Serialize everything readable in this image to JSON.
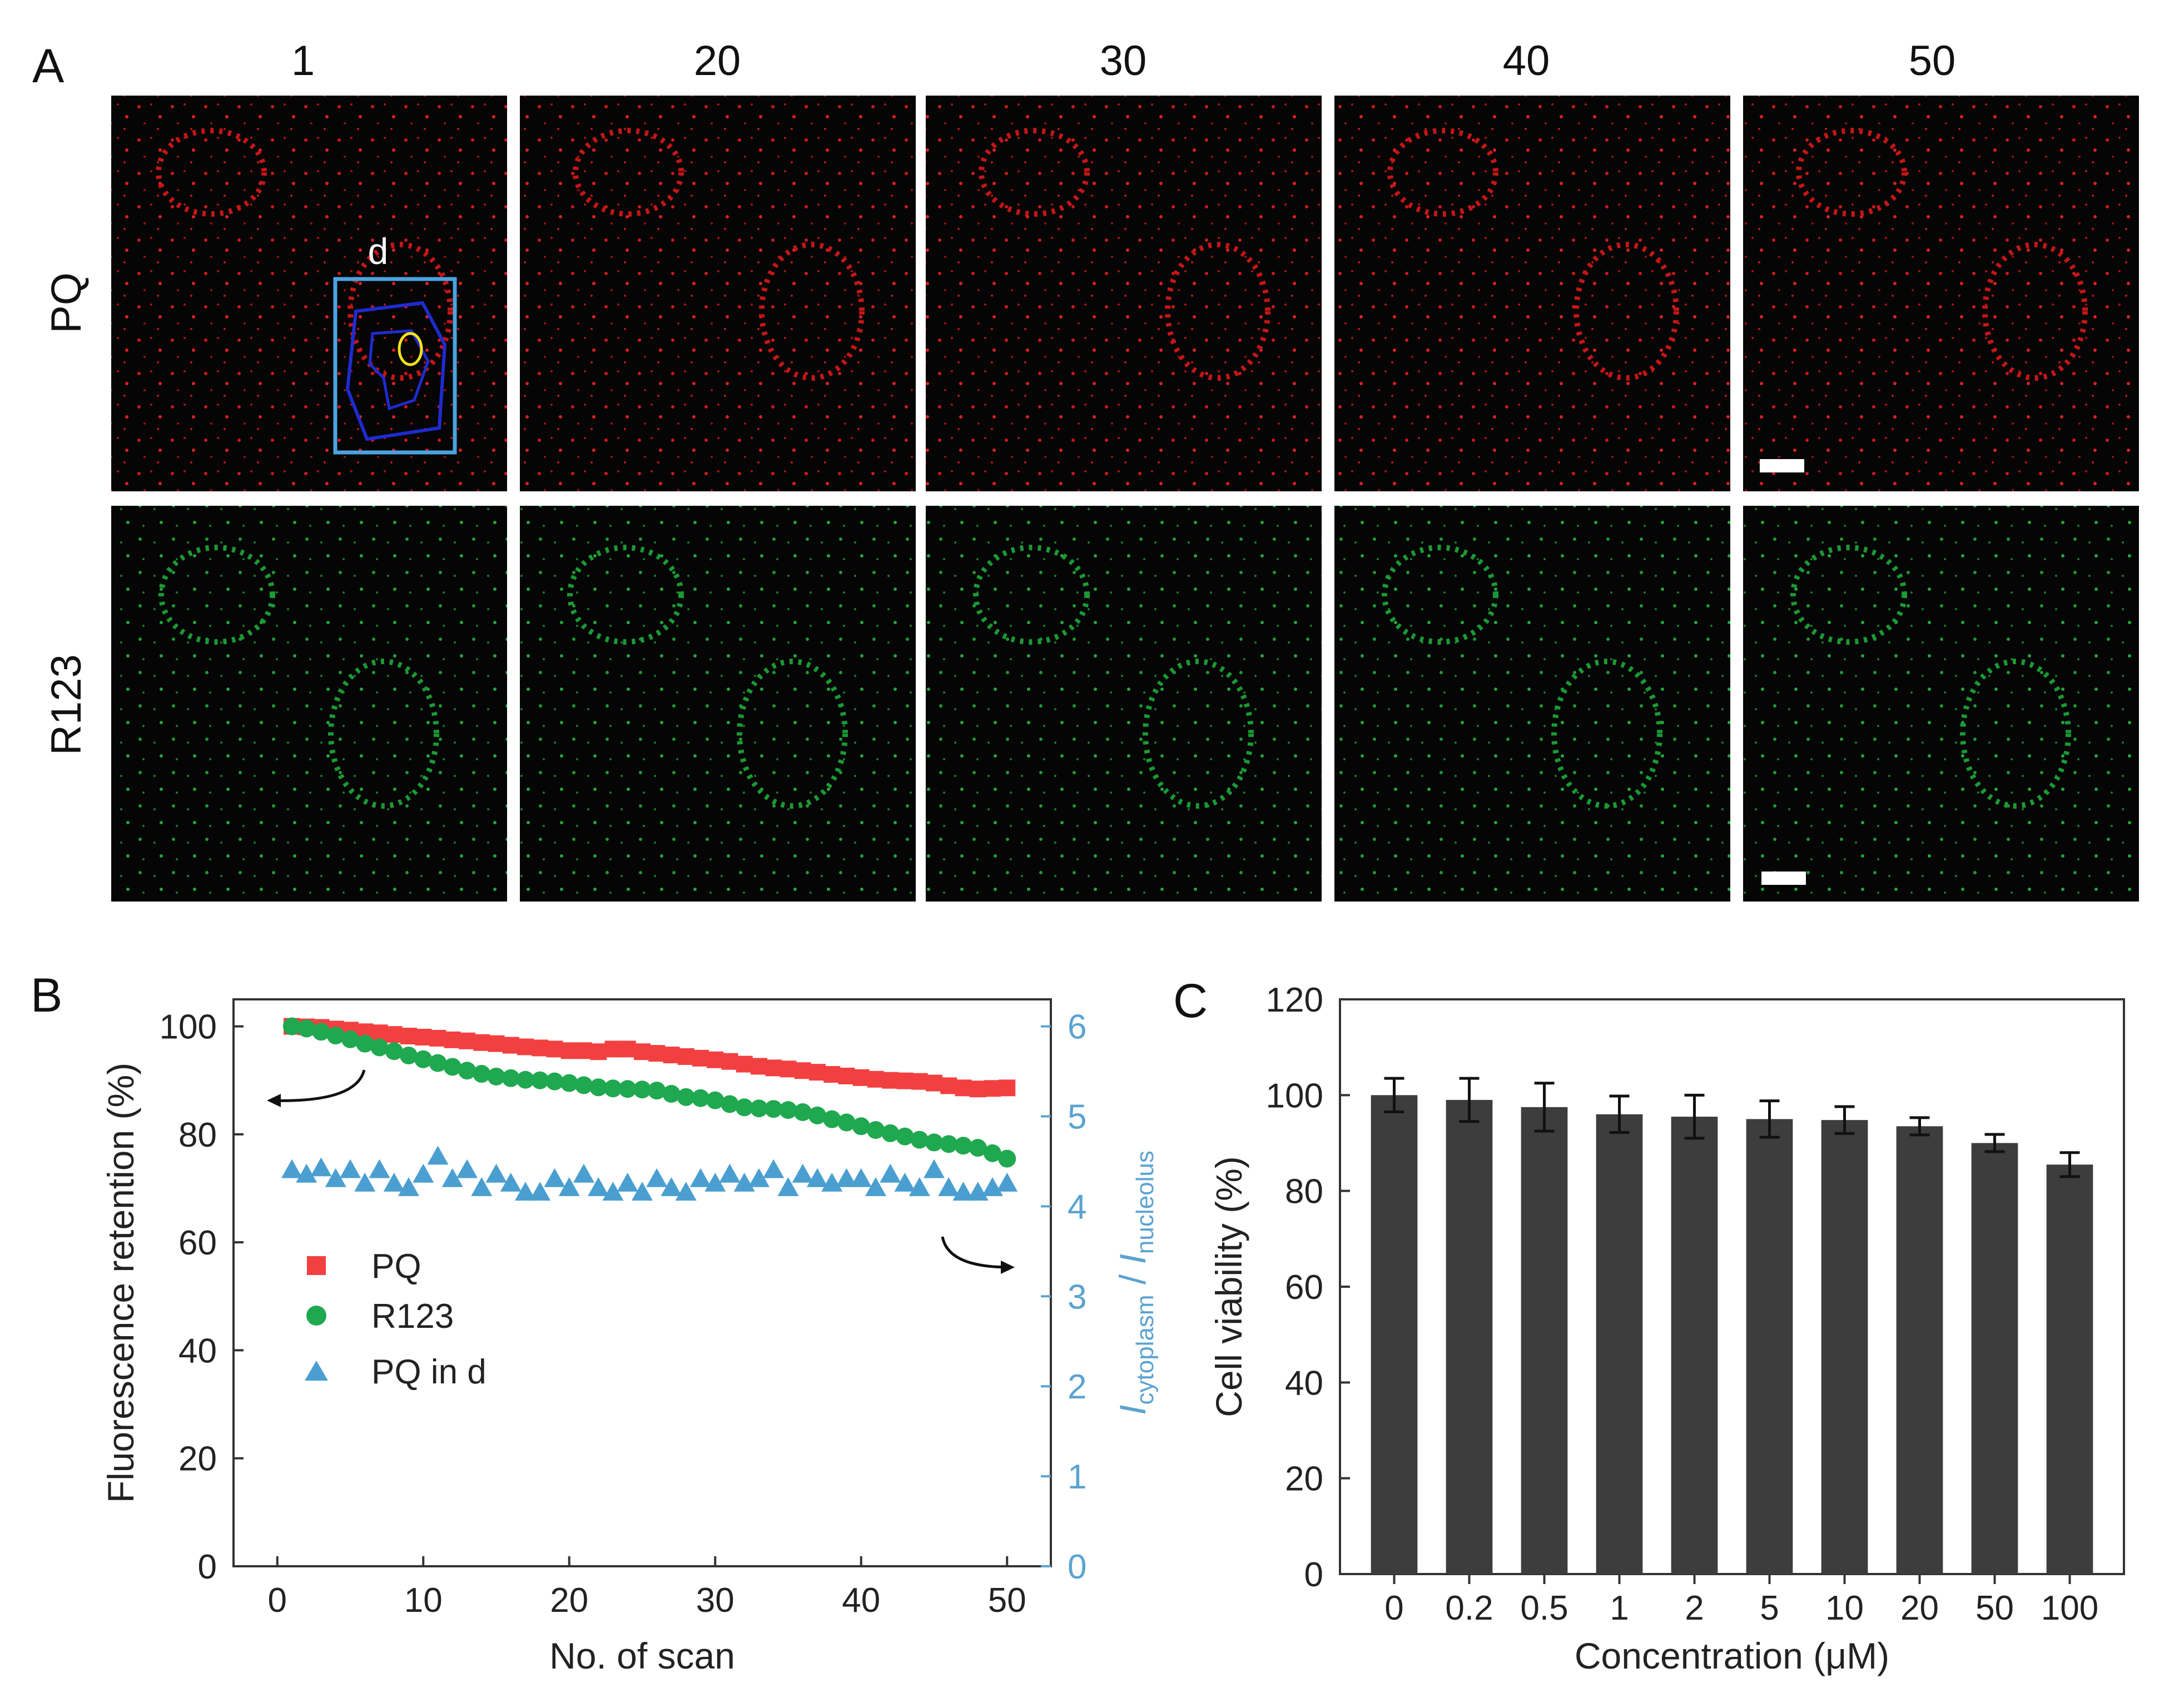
{
  "panel_a": {
    "letter": "A",
    "columns": [
      "1",
      "20",
      "30",
      "40",
      "50"
    ],
    "rows": [
      "PQ",
      "R123"
    ],
    "roi_label": "d",
    "colors": {
      "pq": "#e02020",
      "r123": "#22a83a",
      "roi_outer": "#4aa3df",
      "roi_inner": "#1f2bd0",
      "roi_nucleolus": "#f2e11a"
    }
  },
  "chart_data": [
    {
      "type": "scatter",
      "panel_letter": "B",
      "xlabel": "No. of scan",
      "ylabel": "Fluorescence retention (%)",
      "ylabel_right_parts": {
        "i1": "I",
        "sub1": "cytoplasm",
        "sep": " / ",
        "i2": "I",
        "sub2": "nucleolus"
      },
      "xlim": [
        -3,
        53
      ],
      "ylim": [
        0,
        105
      ],
      "y2lim": [
        0,
        6.3
      ],
      "xticks": [
        0,
        10,
        20,
        30,
        40,
        50
      ],
      "yticks": [
        0,
        20,
        40,
        60,
        80,
        100
      ],
      "y2ticks": [
        0,
        1,
        2,
        3,
        4,
        5,
        6
      ],
      "series": [
        {
          "name": "PQ",
          "marker": "square",
          "color": "#f24040",
          "axis": "left",
          "x": [
            1,
            2,
            3,
            4,
            5,
            6,
            7,
            8,
            9,
            10,
            11,
            12,
            13,
            14,
            15,
            16,
            17,
            18,
            19,
            20,
            21,
            22,
            23,
            24,
            25,
            26,
            27,
            28,
            29,
            30,
            31,
            32,
            33,
            34,
            35,
            36,
            37,
            38,
            39,
            40,
            41,
            42,
            43,
            44,
            45,
            46,
            47,
            48,
            49,
            50
          ],
          "y": [
            100,
            99.9,
            99.8,
            99.5,
            99.3,
            99,
            98.8,
            98.5,
            98.2,
            98,
            97.8,
            97.5,
            97.3,
            97,
            96.8,
            96.5,
            96.2,
            96,
            95.8,
            95.5,
            95.5,
            95.3,
            95.8,
            95.8,
            95.3,
            95,
            94.7,
            94.4,
            94.1,
            93.8,
            93.5,
            93,
            92.6,
            92.3,
            92.1,
            91.8,
            91.5,
            91.1,
            90.8,
            90.5,
            90.2,
            90,
            89.9,
            89.8,
            89.5,
            89,
            88.6,
            88.4,
            88.5,
            88.6
          ]
        },
        {
          "name": "R123",
          "marker": "circle",
          "color": "#1fa84f",
          "axis": "left",
          "x": [
            1,
            2,
            3,
            4,
            5,
            6,
            7,
            8,
            9,
            10,
            11,
            12,
            13,
            14,
            15,
            16,
            17,
            18,
            19,
            20,
            21,
            22,
            23,
            24,
            25,
            26,
            27,
            28,
            29,
            30,
            31,
            32,
            33,
            34,
            35,
            36,
            37,
            38,
            39,
            40,
            41,
            42,
            43,
            44,
            45,
            46,
            47,
            48,
            49,
            50
          ],
          "y": [
            100,
            99.6,
            99,
            98.3,
            97.6,
            96.8,
            96.1,
            95.4,
            94.6,
            93.9,
            93.2,
            92.5,
            91.8,
            91.2,
            90.7,
            90.4,
            90.1,
            90,
            89.8,
            89.5,
            89.1,
            88.7,
            88.5,
            88.4,
            88.3,
            88.1,
            87.5,
            86.9,
            86.7,
            86.3,
            85.6,
            85,
            84.8,
            84.7,
            84.5,
            84.1,
            83.5,
            82.8,
            82.2,
            81.5,
            80.8,
            80.2,
            79.6,
            79,
            78.5,
            78.2,
            77.9,
            77.5,
            76.5,
            75.5
          ]
        },
        {
          "name": "PQ in d",
          "marker": "triangle",
          "color": "#4b9fd0",
          "axis": "right",
          "x": [
            1,
            2,
            3,
            4,
            5,
            6,
            7,
            8,
            9,
            10,
            11,
            12,
            13,
            14,
            15,
            16,
            17,
            18,
            19,
            20,
            21,
            22,
            23,
            24,
            25,
            26,
            27,
            28,
            29,
            30,
            31,
            32,
            33,
            34,
            35,
            36,
            37,
            38,
            39,
            40,
            41,
            42,
            43,
            44,
            45,
            46,
            47,
            48,
            49,
            50
          ],
          "y": [
            4.4,
            4.35,
            4.42,
            4.3,
            4.4,
            4.25,
            4.4,
            4.25,
            4.2,
            4.35,
            4.55,
            4.3,
            4.4,
            4.2,
            4.35,
            4.25,
            4.15,
            4.15,
            4.3,
            4.2,
            4.35,
            4.2,
            4.15,
            4.25,
            4.15,
            4.3,
            4.2,
            4.15,
            4.3,
            4.25,
            4.35,
            4.25,
            4.3,
            4.4,
            4.2,
            4.35,
            4.3,
            4.25,
            4.3,
            4.3,
            4.2,
            4.35,
            4.25,
            4.2,
            4.4,
            4.2,
            4.15,
            4.15,
            4.2,
            4.25
          ]
        }
      ]
    },
    {
      "type": "bar",
      "panel_letter": "C",
      "xlabel": "Concentration (μM)",
      "ylabel": "Cell viability (%)",
      "categories": [
        "0",
        "0.2",
        "0.5",
        "1",
        "2",
        "5",
        "10",
        "20",
        "50",
        "100"
      ],
      "values": [
        100,
        99,
        97.5,
        96,
        95.5,
        95,
        94.8,
        93.5,
        90,
        85.5
      ],
      "errors": [
        3.5,
        4.5,
        5,
        3.8,
        4.5,
        3.8,
        2.8,
        1.8,
        1.8,
        2.5
      ],
      "ylim": [
        0,
        120
      ],
      "yticks": [
        0,
        20,
        40,
        60,
        80,
        100,
        120
      ],
      "bar_color": "#3d3d3d"
    }
  ]
}
